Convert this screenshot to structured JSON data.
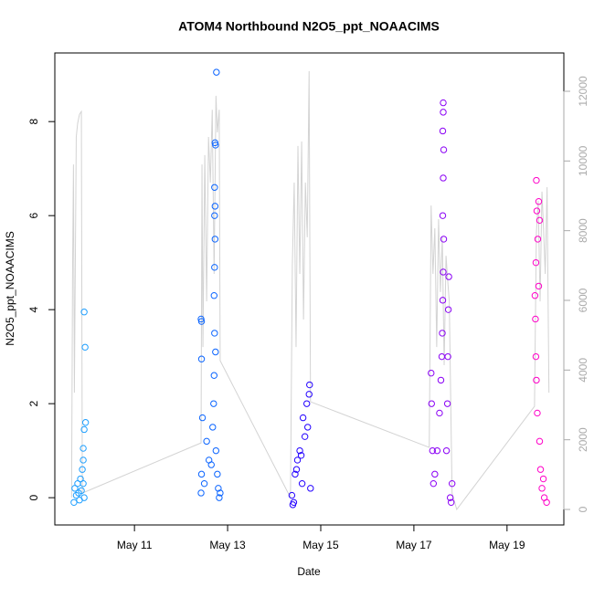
{
  "chart_data": {
    "type": "scatter",
    "title": "ATOM4 Northbound N2O5_ppt_NOAACIMS",
    "x_label": "Date",
    "y_label": "N2O5_ppt_NOAACIMS",
    "xlim": [
      9.29,
      20.22
    ],
    "ylim": [
      -0.58,
      9.46
    ],
    "y2lim": [
      -445,
      13100
    ],
    "xticks": [
      {
        "value": 11,
        "label": "May 11"
      },
      {
        "value": 13,
        "label": "May 13"
      },
      {
        "value": 15,
        "label": "May 15"
      },
      {
        "value": 17,
        "label": "May 17"
      },
      {
        "value": 19,
        "label": "May 19"
      }
    ],
    "yticks": [
      0,
      2,
      4,
      6,
      8
    ],
    "y2ticks": [
      0,
      2000,
      4000,
      6000,
      8000,
      10000,
      12000
    ],
    "series": [
      {
        "color": "#1e9fff",
        "x": [
          9.7,
          9.72,
          9.75,
          9.78,
          9.8,
          9.82,
          9.84,
          9.86,
          9.88,
          9.9,
          9.9,
          9.92,
          9.92,
          9.94,
          9.95,
          9.9,
          9.92
        ],
        "values": [
          -0.1,
          0.2,
          0.05,
          0.3,
          0.1,
          -0.05,
          0.4,
          0.15,
          0.6,
          0.8,
          1.05,
          1.45,
          3.95,
          3.2,
          1.6,
          0.3,
          0.0
        ]
      },
      {
        "color": "#0a64ff",
        "x": [
          12.43,
          12.44,
          12.43,
          12.44,
          12.44,
          12.46,
          12.5,
          12.55,
          12.6,
          12.76,
          12.73,
          12.74,
          12.72,
          12.72,
          12.73,
          12.72,
          12.71,
          12.72,
          12.71,
          12.7,
          12.68,
          12.75,
          12.78,
          12.8,
          12.82,
          12.65,
          12.74,
          12.73,
          12.84
        ],
        "values": [
          0.1,
          0.5,
          3.8,
          3.75,
          2.95,
          1.7,
          0.3,
          1.2,
          0.8,
          9.05,
          7.55,
          7.5,
          6.6,
          6.0,
          5.5,
          4.9,
          4.3,
          3.5,
          2.6,
          2.0,
          1.5,
          1.0,
          0.5,
          0.2,
          0.0,
          0.7,
          3.1,
          6.2,
          0.1
        ]
      },
      {
        "color": "#2200ff",
        "x": [
          14.38,
          14.42,
          14.45,
          14.5,
          14.55,
          14.6,
          14.62,
          14.66,
          14.75,
          14.76,
          14.7,
          14.72,
          14.78,
          14.48,
          14.4,
          14.58
        ],
        "values": [
          0.05,
          -0.1,
          0.5,
          0.8,
          1.0,
          0.3,
          1.7,
          1.3,
          2.2,
          2.4,
          2.0,
          1.5,
          0.2,
          0.6,
          -0.15,
          0.9
        ]
      },
      {
        "color": "#8a00f5",
        "x": [
          17.37,
          17.38,
          17.4,
          17.42,
          17.63,
          17.63,
          17.62,
          17.64,
          17.63,
          17.62,
          17.64,
          17.63,
          17.62,
          17.61,
          17.6,
          17.58,
          17.55,
          17.5,
          17.45,
          17.75,
          17.74,
          17.73,
          17.72,
          17.7,
          17.78,
          17.8,
          17.82
        ],
        "values": [
          2.65,
          2.0,
          1.0,
          0.3,
          8.4,
          8.2,
          7.8,
          7.4,
          6.8,
          6.0,
          5.5,
          4.8,
          4.2,
          3.5,
          3.0,
          2.5,
          1.8,
          1.0,
          0.5,
          4.7,
          4.0,
          3.0,
          2.0,
          1.0,
          0.0,
          -0.1,
          0.3
        ]
      },
      {
        "color": "#ff00c8",
        "x": [
          19.63,
          19.68,
          19.64,
          19.66,
          19.62,
          19.6,
          19.61,
          19.62,
          19.63,
          19.65,
          19.7,
          19.72,
          19.75,
          19.8,
          19.85,
          19.7,
          19.68,
          19.78
        ],
        "values": [
          6.75,
          6.3,
          6.1,
          5.5,
          5.0,
          4.3,
          3.8,
          3.0,
          2.5,
          1.8,
          1.2,
          0.6,
          0.2,
          0.0,
          -0.1,
          5.9,
          4.5,
          0.4
        ]
      },
      {
        "color": "#d3d3d3",
        "axis": "y2",
        "x": [
          9.65,
          9.67,
          9.69,
          9.71,
          9.75,
          9.78,
          9.82,
          9.86,
          9.88,
          12.43,
          12.45,
          12.47,
          12.51,
          12.55,
          12.59,
          12.63,
          12.67,
          12.71,
          12.75,
          12.78,
          12.82,
          12.84,
          14.35,
          14.39,
          14.43,
          14.47,
          14.51,
          14.55,
          14.59,
          14.63,
          14.67,
          14.71,
          14.75,
          14.78,
          17.33,
          17.37,
          17.41,
          17.45,
          17.49,
          17.53,
          17.57,
          17.61,
          17.65,
          17.69,
          17.73,
          17.76,
          17.82,
          17.92,
          19.59,
          19.63,
          19.67,
          19.71,
          19.75,
          19.78,
          19.82,
          19.86,
          19.9
        ],
        "values": [
          340,
          6630,
          9900,
          3350,
          10690,
          11080,
          11340,
          11420,
          470,
          1910,
          9900,
          4660,
          10170,
          5970,
          10690,
          9380,
          11470,
          6760,
          11870,
          10820,
          11470,
          4270,
          340,
          7020,
          9380,
          4660,
          10430,
          6760,
          10560,
          5450,
          9380,
          7810,
          12580,
          3090,
          1780,
          8720,
          6760,
          8070,
          4660,
          8330,
          6240,
          7810,
          4140,
          7280,
          6500,
          5970,
          470,
          0,
          2960,
          7940,
          8860,
          5970,
          9120,
          8200,
          6760,
          9250,
          3350
        ]
      }
    ]
  }
}
